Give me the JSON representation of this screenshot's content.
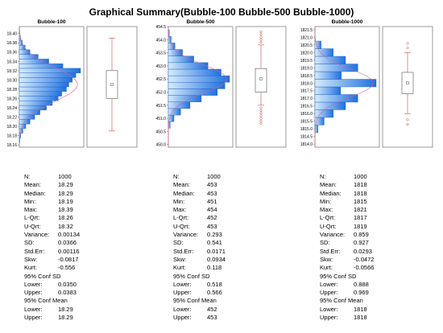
{
  "title": "Graphical Summary(Bubble-100 Bubble-500 Bubble-1000)",
  "colors": {
    "bar_dark": "#1f6fe0",
    "bar_light": "#d6ecfb",
    "curve": "#e0608a",
    "whisker": "#c05050",
    "box": "#555555",
    "frame": "#808080"
  },
  "chart_data": [
    {
      "type": "bar",
      "orientation": "horizontal-histogram",
      "title": "Bubble-100",
      "ylim": [
        18.155,
        18.415
      ],
      "ytick_labels": [
        "18.16",
        "18.18",
        "18.20",
        "18.22",
        "18.24",
        "18.26",
        "18.28",
        "18.30",
        "18.32",
        "18.34",
        "18.36",
        "18.38",
        "18.40"
      ],
      "bins": [
        18.17,
        18.18,
        18.19,
        18.2,
        18.21,
        18.22,
        18.23,
        18.24,
        18.25,
        18.26,
        18.27,
        18.28,
        18.29,
        18.3,
        18.31,
        18.32,
        18.33,
        18.34,
        18.35,
        18.36,
        18.37,
        18.38,
        18.39
      ],
      "counts": [
        4,
        12,
        30,
        55,
        90,
        130,
        175,
        230,
        280,
        330,
        360,
        400,
        420,
        450,
        480,
        520,
        370,
        250,
        160,
        90,
        50,
        25,
        10
      ],
      "box": {
        "min": 18.19,
        "q1": 18.26,
        "median": 18.29,
        "q3": 18.32,
        "max": 18.39,
        "mean": 18.29,
        "outliers": []
      },
      "stats": {
        "n": "1000",
        "mean": "18.29",
        "median": "18.29",
        "min": "18.19",
        "max": "18.39",
        "lqrt": "18.26",
        "uqrt": "18.32",
        "variance": "0.00134",
        "sd": "0.0366",
        "stderr": "0.00116",
        "skw": "-0.0817",
        "kurt": "-0.556",
        "sd_lower": "0.0350",
        "sd_upper": "0.0383",
        "mean_lower": "18.29",
        "mean_upper": "18.29"
      }
    },
    {
      "type": "bar",
      "orientation": "horizontal-histogram",
      "title": "Bubble-500",
      "ylim": [
        449.9,
        454.5
      ],
      "ytick_labels": [
        "450.0",
        "450.5",
        "451.0",
        "451.5",
        "452.0",
        "452.5",
        "453.0",
        "453.5",
        "454.0",
        "454.5"
      ],
      "bins": [
        450.75,
        451.0,
        451.25,
        451.5,
        451.75,
        452.0,
        452.25,
        452.5,
        452.75,
        453.0,
        453.25,
        453.5,
        453.75,
        454.0,
        454.25
      ],
      "counts": [
        20,
        60,
        130,
        230,
        350,
        520,
        600,
        650,
        560,
        420,
        270,
        150,
        70,
        30,
        10
      ],
      "box": {
        "min": 451.5,
        "q1": 452,
        "median": 452.5,
        "q3": 452.9,
        "max": 453.8,
        "mean": 452.5,
        "outliers": [
          450.8,
          450.9,
          451.0,
          451.1,
          451.2,
          451.3,
          451.4,
          453.9,
          454.0,
          454.1,
          454.2,
          454.3
        ]
      },
      "stats": {
        "n": "1000",
        "mean": "453",
        "median": "453",
        "min": "451",
        "max": "454",
        "lqrt": "452",
        "uqrt": "453",
        "variance": "0.293",
        "sd": "0.541",
        "stderr": "0.0171",
        "skw": "0.0934",
        "kurt": "0.118",
        "sd_lower": "0.518",
        "sd_upper": "0.566",
        "mean_lower": "452",
        "mean_upper": "453"
      }
    },
    {
      "type": "bar",
      "orientation": "horizontal-histogram",
      "title": "Bubble-1000",
      "ylim": [
        1813.8,
        1821.7
      ],
      "ytick_labels": [
        "1814.0",
        "1814.5",
        "1815.0",
        "1815.5",
        "1816.0",
        "1816.5",
        "1817.0",
        "1817.5",
        "1818.0",
        "1818.5",
        "1819.0",
        "1819.5",
        "1820.0",
        "1820.5",
        "1821.0",
        "1821.5"
      ],
      "bins": [
        1815.0,
        1815.5,
        1816.0,
        1816.5,
        1817.0,
        1817.5,
        1818.0,
        1818.5,
        1819.0,
        1819.5,
        1820.0,
        1820.5
      ],
      "counts": [
        50,
        150,
        300,
        500,
        700,
        420,
        1000,
        430,
        700,
        500,
        300,
        100
      ],
      "box": {
        "min": 1816,
        "q1": 1817.3,
        "median": 1818,
        "q3": 1818.7,
        "max": 1820,
        "mean": 1818,
        "outliers": [
          1815.3,
          1815.6,
          1820.3,
          1820.6
        ]
      },
      "stats": {
        "n": "1000",
        "mean": "1818",
        "median": "1818",
        "min": "1815",
        "max": "1821",
        "lqrt": "1817",
        "uqrt": "1819",
        "variance": "0.859",
        "sd": "0.927",
        "stderr": "0.0293",
        "skw": "-0.0472",
        "kurt": "-0.0566",
        "sd_lower": "0.888",
        "sd_upper": "0.969",
        "mean_lower": "1818",
        "mean_upper": "1818"
      }
    }
  ],
  "stat_labels": {
    "n": "N:",
    "mean": "Mean:",
    "median": "Median:",
    "min": "Min:",
    "max": "Max:",
    "lqrt": "L-Qrt:",
    "uqrt": "U-Qrt:",
    "variance": "Variance:",
    "sd": "SD:",
    "stderr": "Std.Err:",
    "skw": "Skw:",
    "kurt": "Kurt:",
    "conf_sd": "95% Conf SD",
    "conf_mean": "95% Conf Mean",
    "lower": "Lower:",
    "upper": "Upper:"
  }
}
